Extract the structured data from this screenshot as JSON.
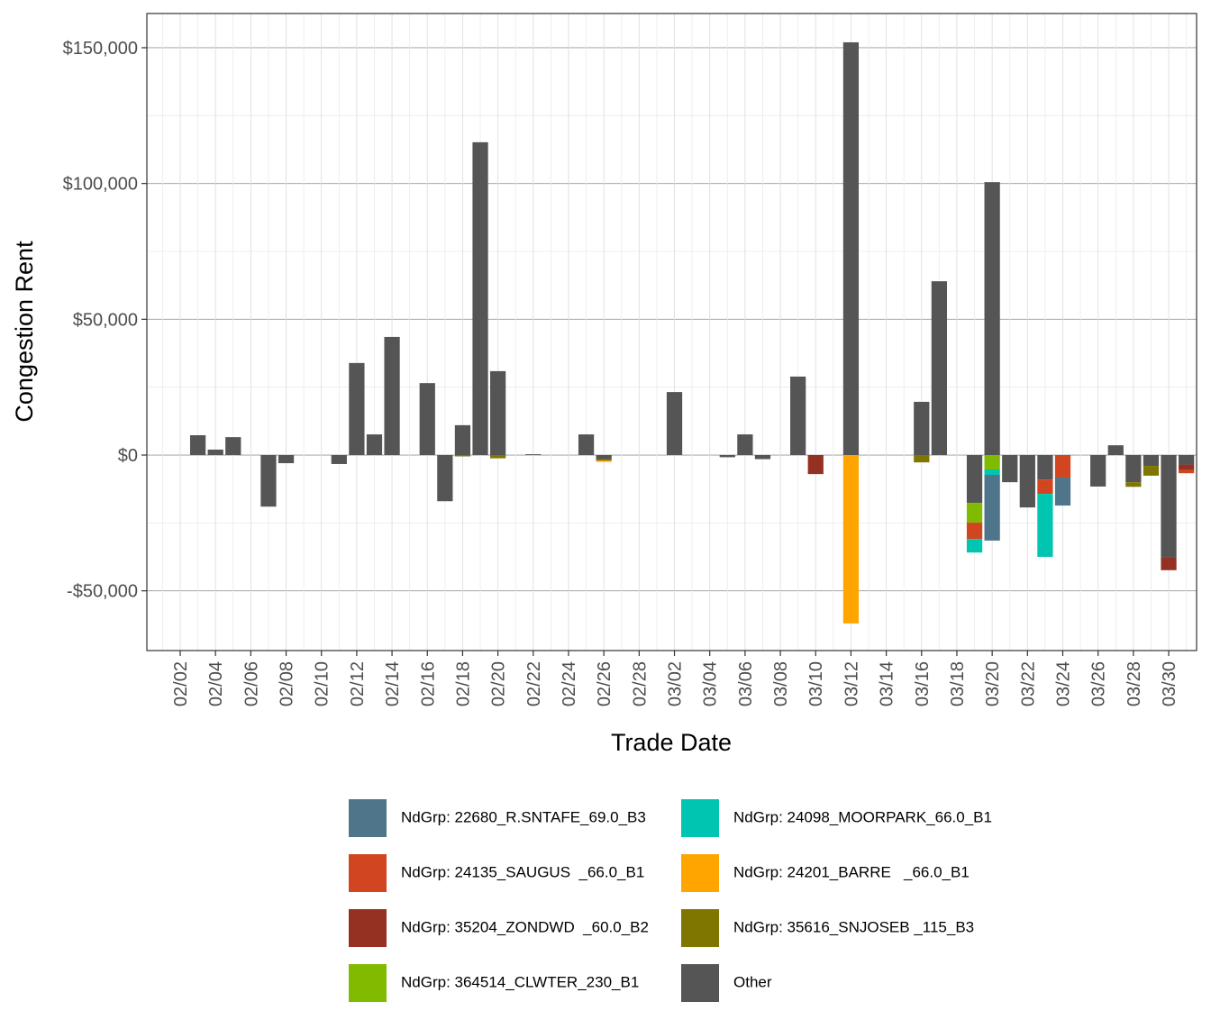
{
  "chart_data": {
    "type": "stacked-bar",
    "x_label": "Trade Date",
    "y_label": "Congestion Rent",
    "categories": [
      null,
      "02/02",
      null,
      "02/04",
      null,
      "02/06",
      null,
      "02/08",
      null,
      "02/10",
      null,
      "02/12",
      null,
      "02/14",
      null,
      "02/16",
      null,
      "02/18",
      null,
      "02/20",
      null,
      "02/22",
      null,
      "02/24",
      null,
      "02/26",
      null,
      "02/28",
      null,
      "03/02",
      null,
      "03/04",
      null,
      "03/06",
      null,
      "03/08",
      null,
      "03/10",
      null,
      "03/12",
      null,
      "03/14",
      null,
      "03/16",
      null,
      "03/18",
      null,
      "03/20",
      null,
      "03/22",
      null,
      "03/24",
      null,
      "03/26",
      null,
      "03/28",
      null,
      "03/30",
      null
    ],
    "ylim": [
      -72000,
      162600
    ],
    "yticks": [
      {
        "value": -50000,
        "label": "-$50,000"
      },
      {
        "value": 0,
        "label": "$0"
      },
      {
        "value": 50000,
        "label": "$50,000"
      },
      {
        "value": 100000,
        "label": "$100,000"
      },
      {
        "value": 150000,
        "label": "$150,000"
      }
    ],
    "grid": true,
    "legend_position": "bottom",
    "series": [
      {
        "name": "NdGrp: 22680_R.SNTAFE_69.0_B3",
        "color": "#4e7589",
        "values": [
          null,
          null,
          null,
          null,
          null,
          null,
          null,
          null,
          null,
          null,
          null,
          null,
          null,
          null,
          null,
          null,
          null,
          null,
          null,
          null,
          null,
          null,
          null,
          null,
          null,
          null,
          null,
          null,
          null,
          null,
          null,
          null,
          null,
          null,
          null,
          null,
          null,
          null,
          null,
          null,
          null,
          null,
          null,
          null,
          null,
          null,
          null,
          -24200,
          null,
          null,
          null,
          -10300,
          null,
          null,
          null,
          null,
          null,
          null,
          null
        ]
      },
      {
        "name": "NdGrp: 24098_MOORPARK_66.0_B1",
        "color": "#00c5b0",
        "values": [
          null,
          null,
          null,
          null,
          null,
          null,
          null,
          null,
          null,
          null,
          null,
          null,
          null,
          null,
          null,
          null,
          null,
          null,
          null,
          null,
          null,
          null,
          null,
          null,
          null,
          null,
          null,
          null,
          null,
          null,
          null,
          null,
          null,
          null,
          null,
          null,
          null,
          null,
          null,
          null,
          null,
          null,
          null,
          null,
          null,
          null,
          -5000,
          -2000,
          null,
          null,
          -23200,
          null,
          null,
          null,
          null,
          null,
          null,
          null,
          null
        ]
      },
      {
        "name": "NdGrp: 24135_SAUGUS  _66.0_B1",
        "color": "#d14520",
        "values": [
          null,
          null,
          null,
          null,
          null,
          null,
          null,
          null,
          null,
          null,
          null,
          null,
          null,
          null,
          null,
          null,
          null,
          null,
          null,
          null,
          null,
          null,
          null,
          null,
          null,
          null,
          null,
          null,
          null,
          null,
          null,
          null,
          null,
          null,
          null,
          null,
          null,
          null,
          null,
          null,
          null,
          null,
          null,
          null,
          null,
          null,
          -6000,
          null,
          null,
          null,
          -5300,
          -8300,
          null,
          null,
          null,
          null,
          null,
          null,
          -1200
        ]
      },
      {
        "name": "NdGrp: 24201_BARRE   _66.0_B1",
        "color": "#ffa500",
        "values": [
          null,
          null,
          null,
          null,
          null,
          null,
          null,
          null,
          null,
          null,
          null,
          null,
          null,
          null,
          null,
          null,
          null,
          null,
          null,
          null,
          null,
          null,
          null,
          null,
          null,
          -500,
          null,
          null,
          null,
          null,
          null,
          null,
          null,
          null,
          null,
          null,
          null,
          null,
          null,
          -62000,
          null,
          null,
          null,
          null,
          null,
          null,
          null,
          null,
          null,
          null,
          null,
          null,
          null,
          null,
          null,
          null,
          null,
          null,
          null
        ]
      },
      {
        "name": "NdGrp: 35204_ZONDWD  _60.0_B2",
        "color": "#943122",
        "values": [
          null,
          null,
          null,
          null,
          null,
          null,
          null,
          null,
          null,
          null,
          null,
          null,
          null,
          null,
          null,
          null,
          null,
          null,
          null,
          null,
          null,
          null,
          null,
          null,
          null,
          null,
          null,
          null,
          null,
          null,
          null,
          null,
          null,
          null,
          null,
          null,
          null,
          -7000,
          null,
          null,
          null,
          null,
          null,
          null,
          null,
          null,
          null,
          null,
          null,
          null,
          null,
          null,
          null,
          null,
          null,
          null,
          null,
          -4600,
          -2000
        ]
      },
      {
        "name": "NdGrp: 35616_SNJOSEB _115_B3",
        "color": "#7f7600",
        "values": [
          null,
          null,
          null,
          null,
          null,
          null,
          null,
          null,
          null,
          null,
          null,
          null,
          null,
          null,
          null,
          null,
          null,
          -500,
          null,
          -1200,
          null,
          null,
          null,
          null,
          null,
          -500,
          null,
          null,
          null,
          null,
          null,
          null,
          null,
          null,
          null,
          null,
          null,
          null,
          null,
          null,
          null,
          null,
          null,
          -2700,
          null,
          null,
          null,
          null,
          null,
          null,
          null,
          null,
          null,
          null,
          null,
          -1700,
          -3600,
          null,
          null
        ]
      },
      {
        "name": "NdGrp: 364514_CLWTER_230_B1",
        "color": "#80bb00",
        "values": [
          null,
          null,
          null,
          null,
          null,
          null,
          null,
          null,
          null,
          null,
          null,
          null,
          null,
          null,
          null,
          null,
          null,
          null,
          null,
          null,
          null,
          null,
          null,
          null,
          null,
          null,
          null,
          null,
          null,
          null,
          null,
          null,
          null,
          null,
          null,
          null,
          null,
          null,
          null,
          null,
          null,
          null,
          null,
          null,
          null,
          null,
          -7300,
          -5300,
          null,
          null,
          null,
          null,
          null,
          null,
          null,
          null,
          null,
          null,
          null
        ]
      },
      {
        "name": "Other",
        "color": "#555555",
        "values": [
          null,
          null,
          7300,
          2000,
          6600,
          null,
          -19000,
          -3000,
          null,
          null,
          -3300,
          33900,
          7600,
          43500,
          null,
          26500,
          -17000,
          11000,
          115200,
          30900,
          null,
          300,
          null,
          null,
          7600,
          -1500,
          null,
          null,
          null,
          23200,
          null,
          null,
          -800,
          7600,
          -1500,
          null,
          28900,
          null,
          null,
          152000,
          null,
          null,
          null,
          19600,
          64000,
          null,
          -17600,
          100500,
          -10000,
          -19300,
          -9000,
          null,
          null,
          -11600,
          3600,
          -10000,
          -4000,
          -37800,
          -3500
        ]
      }
    ]
  }
}
